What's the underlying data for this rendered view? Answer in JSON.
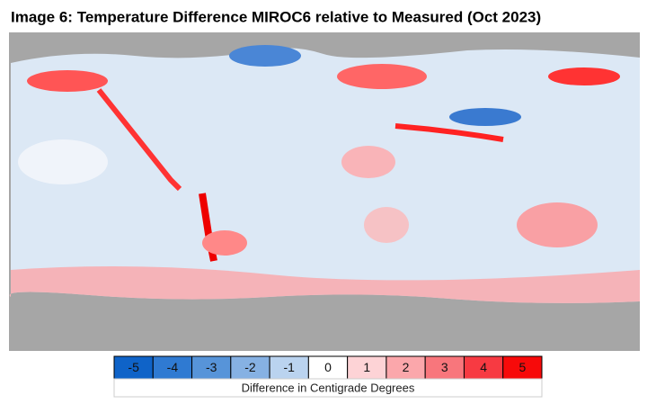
{
  "title": "Image 6: Temperature Difference MIROC6 relative to Measured (Oct 2023)",
  "legend": {
    "items": [
      {
        "value": -5,
        "color": "#0f63c8"
      },
      {
        "value": -4,
        "color": "#2f7ad2"
      },
      {
        "value": -3,
        "color": "#5794d9"
      },
      {
        "value": -2,
        "color": "#86b1e3"
      },
      {
        "value": -1,
        "color": "#bad3ef"
      },
      {
        "value": 0,
        "color": "#ffffff"
      },
      {
        "value": 1,
        "color": "#fdd3d6"
      },
      {
        "value": 2,
        "color": "#fba7ab"
      },
      {
        "value": 3,
        "color": "#f8767c"
      },
      {
        "value": 4,
        "color": "#f73a42"
      },
      {
        "value": 5,
        "color": "#f70a0a"
      }
    ],
    "caption": "Difference in Centigrade Degrees"
  }
}
